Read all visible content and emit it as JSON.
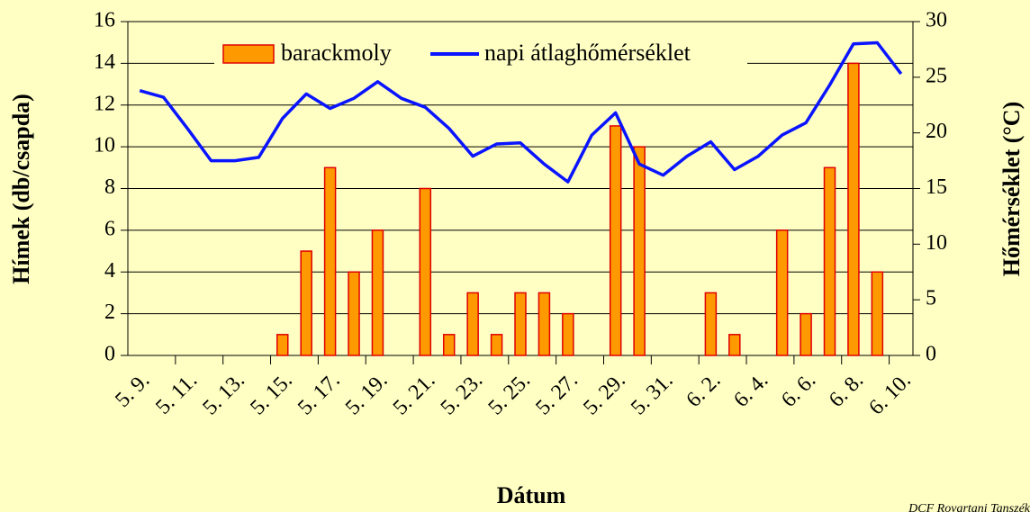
{
  "chart_data": {
    "type": "bar",
    "x_label": "Dátum",
    "y_label": "Hímek (db/csapda)",
    "y2_label": "Hőmérséklet (°C)",
    "footer": "DCF Rovartani Tanszék",
    "categories": [
      "5. 9.",
      null,
      "5. 11.",
      null,
      "5. 13.",
      null,
      "5. 15.",
      null,
      "5. 17.",
      null,
      "5. 19.",
      null,
      "5. 21.",
      null,
      "5. 23.",
      null,
      "5. 25.",
      null,
      "5. 27.",
      null,
      "5. 29.",
      null,
      "5. 31.",
      null,
      "6. 2.",
      null,
      "6. 4.",
      null,
      "6. 6.",
      null,
      "6. 8.",
      null,
      "6. 10."
    ],
    "series": [
      {
        "name": "barackmoly",
        "type": "bar",
        "color": "#ff9900",
        "edge": "#e00000",
        "values": [
          0,
          0,
          0,
          0,
          0,
          0,
          1,
          5,
          9,
          4,
          6,
          0,
          8,
          1,
          3,
          1,
          3,
          3,
          2,
          0,
          11,
          10,
          0,
          0,
          3,
          1,
          0,
          6,
          2,
          9,
          14,
          4,
          0
        ]
      },
      {
        "name": "napi átlaghőmérséklet",
        "type": "line",
        "axis": "y2",
        "color": "#0a14ff",
        "values": [
          23.8,
          23.2,
          20.4,
          17.5,
          17.5,
          17.8,
          21.3,
          23.5,
          22.2,
          23.1,
          24.6,
          23.1,
          22.3,
          20.4,
          17.9,
          19.0,
          19.1,
          17.2,
          15.6,
          19.8,
          21.8,
          17.2,
          16.2,
          17.9,
          19.2,
          16.7,
          17.9,
          19.8,
          20.9,
          24.3,
          28.0,
          28.1,
          25.3
        ]
      }
    ],
    "ylim": [
      0,
      16
    ],
    "yticks": [
      0,
      2,
      4,
      6,
      8,
      10,
      12,
      14,
      16
    ],
    "y2lim": [
      0,
      30
    ],
    "y2ticks": [
      0,
      5,
      10,
      15,
      20,
      25,
      30
    ],
    "grid": true,
    "legend": "top"
  }
}
